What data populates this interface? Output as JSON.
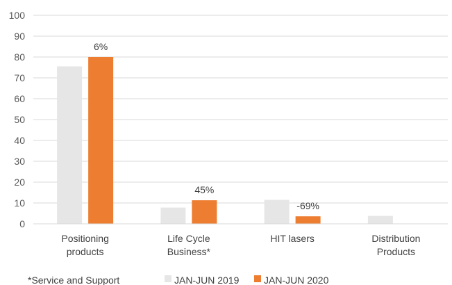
{
  "chart_data": {
    "type": "bar",
    "categories": [
      [
        "Positioning",
        "products"
      ],
      [
        "Life Cycle",
        "Business*"
      ],
      [
        "HIT lasers"
      ],
      [
        "Distribution",
        "Products"
      ]
    ],
    "series": [
      {
        "name": "JAN-JUN 2019",
        "values": [
          75.5,
          7.8,
          11.5,
          3.8
        ],
        "color": "#e6e6e6"
      },
      {
        "name": "JAN-JUN 2020",
        "values": [
          80.0,
          11.3,
          3.6,
          0
        ],
        "color": "#ed7d31"
      }
    ],
    "data_labels": [
      "6%",
      "45%",
      "-69%",
      ""
    ],
    "ylim": [
      0,
      100
    ],
    "yticks": [
      0,
      10,
      20,
      30,
      40,
      50,
      60,
      70,
      80,
      90,
      100
    ],
    "grid": true,
    "legend_position": "bottom",
    "footnote": "*Service and Support"
  }
}
